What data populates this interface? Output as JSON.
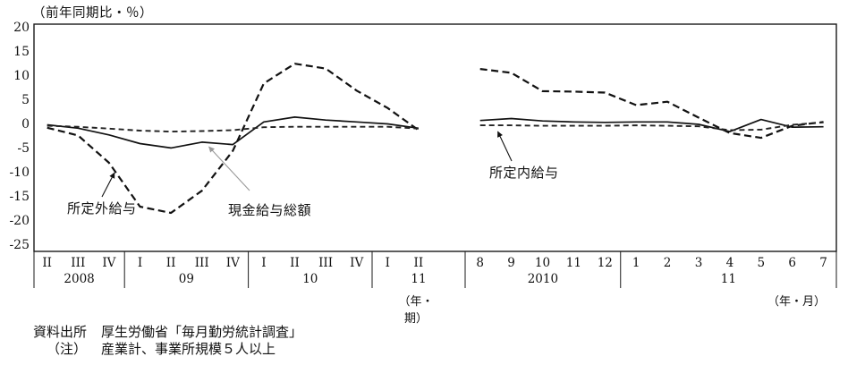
{
  "chart": {
    "title": "（前年同期比・％）"
  },
  "chart_data": {
    "type": "line",
    "title": "（前年同期比・％）",
    "ylabel": "前年同期比（％）",
    "ylim": [
      -25,
      20
    ],
    "yticks": [
      20,
      15,
      10,
      5,
      0,
      -5,
      -10,
      -15,
      -20,
      -25
    ],
    "grid": false,
    "legend_position": "inline-annotations",
    "panels": [
      {
        "name": "quarterly",
        "axis_note": "（年・期）",
        "groups": [
          {
            "year": "2008",
            "ticks": [
              "II",
              "III",
              "IV"
            ]
          },
          {
            "year": "09",
            "ticks": [
              "I",
              "II",
              "III",
              "IV"
            ]
          },
          {
            "year": "10",
            "ticks": [
              "I",
              "II",
              "III",
              "IV"
            ]
          },
          {
            "year": "11",
            "ticks": [
              "I",
              "II"
            ]
          }
        ],
        "series": [
          {
            "key": "overtime",
            "name": "所定外給与",
            "values": [
              -0.7,
              -2.3,
              -8.0,
              -17.1,
              -18.4,
              -13.8,
              -5.5,
              8.5,
              12.6,
              11.6,
              7.0,
              3.4,
              -1.2
            ]
          },
          {
            "key": "total",
            "name": "現金給与総額",
            "values": [
              -0.1,
              -0.8,
              -2.2,
              -4.0,
              -4.9,
              -3.7,
              -4.2,
              0.5,
              1.5,
              0.9,
              0.5,
              0.1,
              -0.8
            ]
          },
          {
            "key": "scheduled",
            "name": "所定内給与",
            "values": [
              -0.3,
              -0.5,
              -0.9,
              -1.3,
              -1.5,
              -1.4,
              -1.2,
              -0.6,
              -0.5,
              -0.5,
              -0.5,
              -0.5,
              -0.9
            ]
          }
        ]
      },
      {
        "name": "monthly",
        "axis_note": "（年・月）",
        "groups": [
          {
            "year": "2010",
            "ticks": [
              "8",
              "9",
              "10",
              "11",
              "12"
            ]
          },
          {
            "year": "11",
            "ticks": [
              "1",
              "2",
              "3",
              "4",
              "5",
              "6",
              "7"
            ]
          }
        ],
        "series": [
          {
            "key": "overtime",
            "name": "所定外給与",
            "values": [
              11.5,
              10.7,
              6.9,
              6.8,
              6.6,
              4.0,
              4.7,
              1.4,
              -1.8,
              -2.8,
              -0.3,
              0.5
            ]
          },
          {
            "key": "total",
            "name": "現金給与総額",
            "values": [
              0.8,
              1.2,
              0.7,
              0.5,
              0.4,
              0.5,
              0.5,
              0.0,
              -1.5,
              1.0,
              -0.6,
              -0.5
            ]
          },
          {
            "key": "scheduled",
            "name": "所定内給与",
            "values": [
              -0.2,
              -0.2,
              -0.3,
              -0.3,
              -0.3,
              -0.2,
              -0.3,
              -0.4,
              -1.2,
              -1.1,
              -0.1,
              0.4
            ]
          }
        ]
      }
    ]
  },
  "footnotes": {
    "source_label": "資料出所",
    "source_text": "厚生労働省「毎月勤労統計調査」",
    "note_label": "（注）",
    "note_text": "産業計、事業所規模５人以上"
  }
}
